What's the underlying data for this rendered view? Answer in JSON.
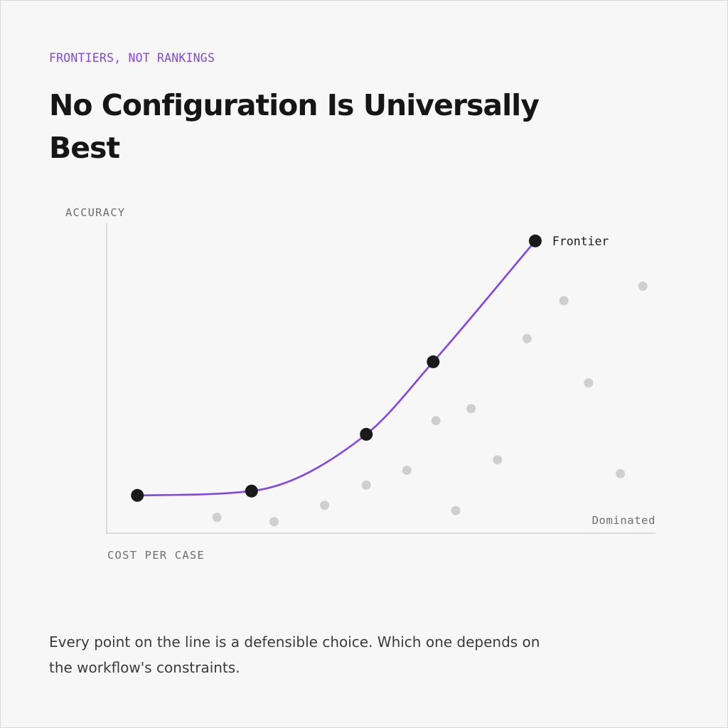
{
  "eyebrow": "FRONTIERS, NOT RANKINGS",
  "title": "No Configuration Is Universally Best",
  "caption": "Every point on the line is a defensible choice. Which one depends on the workflow's constraints.",
  "colors": {
    "accent": "#8247e5",
    "frontier_point": "#1a1a1a",
    "dominated_point": "#cfcfcf",
    "axis": "#d4d4d4"
  },
  "chart_data": {
    "type": "scatter",
    "xlabel": "COST PER CASE",
    "ylabel": "ACCURACY",
    "xlim": [
      0,
      100
    ],
    "ylim": [
      0,
      100
    ],
    "grid": false,
    "series": [
      {
        "name": "Frontier",
        "line": true,
        "points": [
          {
            "x": 5.6,
            "y": 12.2
          },
          {
            "x": 26.4,
            "y": 13.6
          },
          {
            "x": 47.3,
            "y": 31.9
          },
          {
            "x": 59.5,
            "y": 55.3
          },
          {
            "x": 78.1,
            "y": 94.3
          }
        ]
      },
      {
        "name": "Dominated",
        "line": false,
        "points": [
          {
            "x": 20.1,
            "y": 5.1
          },
          {
            "x": 30.5,
            "y": 3.7
          },
          {
            "x": 39.7,
            "y": 9.0
          },
          {
            "x": 47.3,
            "y": 15.5
          },
          {
            "x": 54.7,
            "y": 20.3
          },
          {
            "x": 60.0,
            "y": 36.3
          },
          {
            "x": 63.6,
            "y": 7.3
          },
          {
            "x": 66.4,
            "y": 40.2
          },
          {
            "x": 71.2,
            "y": 23.7
          },
          {
            "x": 76.6,
            "y": 62.8
          },
          {
            "x": 83.3,
            "y": 75.0
          },
          {
            "x": 87.8,
            "y": 48.5
          },
          {
            "x": 93.6,
            "y": 19.2
          },
          {
            "x": 97.7,
            "y": 79.7
          }
        ]
      }
    ]
  }
}
